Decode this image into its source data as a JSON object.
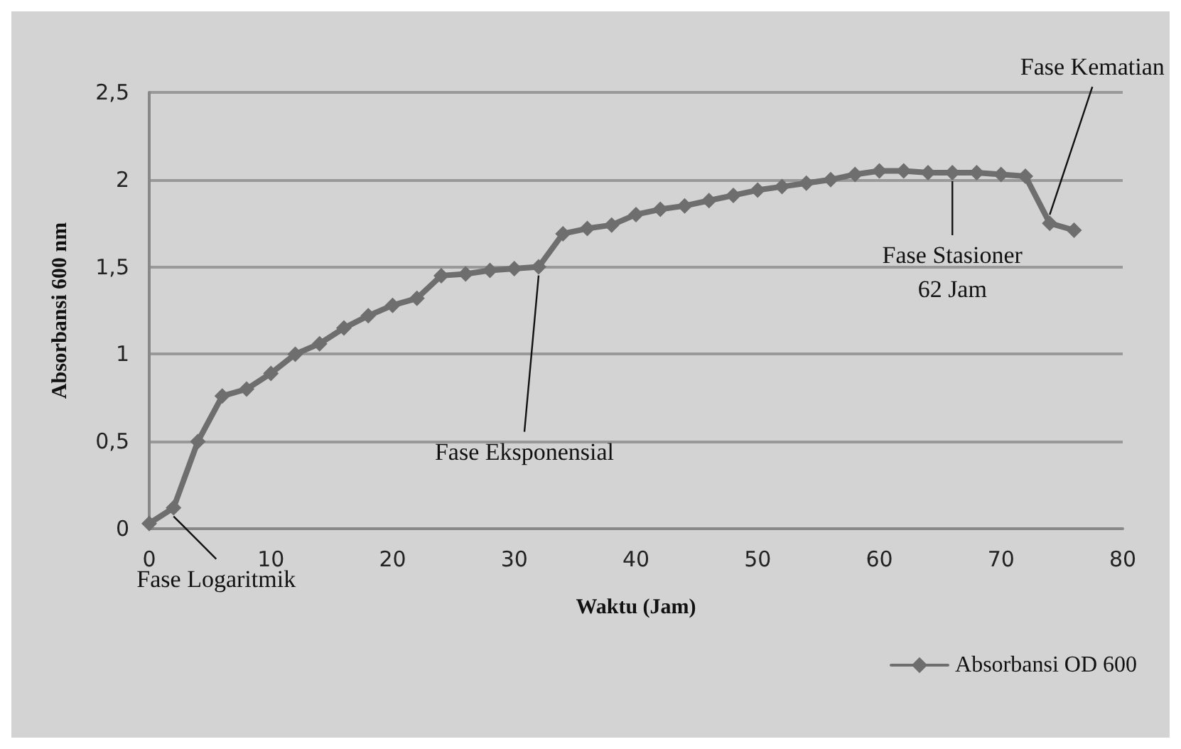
{
  "chart_data": {
    "type": "line",
    "xlabel": "Waktu (Jam)",
    "ylabel": "Absorbansi 600 nm",
    "x": [
      0,
      2,
      4,
      6,
      8,
      10,
      12,
      14,
      16,
      18,
      20,
      22,
      24,
      26,
      28,
      30,
      32,
      34,
      36,
      38,
      40,
      42,
      44,
      46,
      48,
      50,
      52,
      54,
      56,
      58,
      60,
      62,
      64,
      66,
      68,
      70,
      72,
      74,
      76
    ],
    "series": [
      {
        "name": "Absorbansi OD 600",
        "color": "#6e6e6e",
        "values": [
          0.03,
          0.12,
          0.5,
          0.76,
          0.8,
          0.89,
          1.0,
          1.06,
          1.15,
          1.22,
          1.28,
          1.32,
          1.45,
          1.46,
          1.48,
          1.49,
          1.5,
          1.69,
          1.72,
          1.74,
          1.8,
          1.83,
          1.85,
          1.88,
          1.91,
          1.94,
          1.96,
          1.98,
          2.0,
          2.03,
          2.05,
          2.05,
          2.04,
          2.04,
          2.04,
          2.03,
          2.02,
          1.75,
          1.71
        ]
      }
    ],
    "xlim": [
      0,
      80
    ],
    "xticks": [
      0,
      10,
      20,
      30,
      40,
      50,
      60,
      70,
      80
    ],
    "ylim": [
      0,
      2.5
    ],
    "yticks": [
      0,
      {
        "value": 0.5,
        "label": "0,5"
      },
      1,
      {
        "value": 1.5,
        "label": "1,5"
      },
      2,
      {
        "value": 2.5,
        "label": "2,5"
      }
    ],
    "annotations": [
      {
        "text": "Fase Logaritmik",
        "x": 2,
        "y": 0.12
      },
      {
        "text": "Fase Eksponensial",
        "x": 32,
        "y": 1.5
      },
      {
        "text": "Fase Stasioner\n62 Jam",
        "x": 66,
        "y": 2.04
      },
      {
        "text": "Fase Kematian",
        "x": 74,
        "y": 1.75
      }
    ],
    "grid": "y",
    "legend": "bottom right",
    "marker": "diamond",
    "line_style": "solid"
  }
}
